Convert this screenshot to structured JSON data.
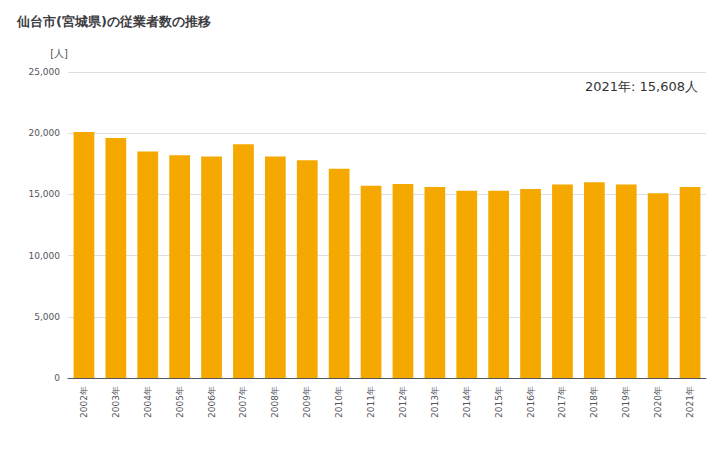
{
  "chart_data": {
    "type": "bar",
    "title": "仙台市(宮城県)の従業者数の推移",
    "ylabel": "[人]",
    "annotation": "2021年: 15,608人",
    "categories": [
      "2002年",
      "2003年",
      "2004年",
      "2005年",
      "2006年",
      "2007年",
      "2008年",
      "2009年",
      "2010年",
      "2011年",
      "2012年",
      "2013年",
      "2014年",
      "2015年",
      "2016年",
      "2017年",
      "2018年",
      "2019年",
      "2020年",
      "2021年"
    ],
    "values": [
      20100,
      19600,
      18500,
      18200,
      18100,
      19100,
      18100,
      17800,
      17100,
      15700,
      15850,
      15600,
      15300,
      15300,
      15450,
      15800,
      16000,
      15800,
      15100,
      15608
    ],
    "color": "#F5A800",
    "ylim": [
      0,
      25000
    ],
    "yticks": [
      0,
      {
        "value": 5000,
        "label": "5,000"
      },
      {
        "value": 10000,
        "label": "10,000"
      },
      {
        "value": 15000,
        "label": "15,000"
      },
      {
        "value": 20000,
        "label": "20,000"
      },
      {
        "value": 25000,
        "label": "25,000"
      }
    ],
    "grid": true
  }
}
